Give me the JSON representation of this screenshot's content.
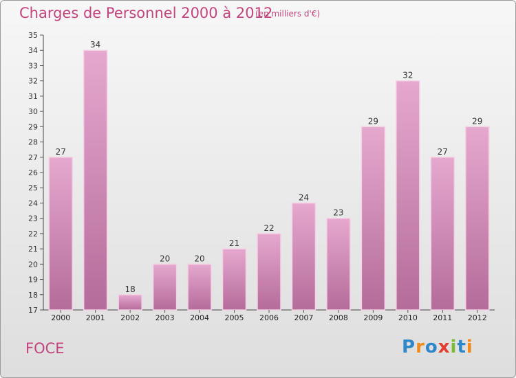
{
  "title": "Charges de Personnel 2000 à 2012",
  "subtitle": "(en milliers d'€)",
  "commune": "FOCE",
  "logo": {
    "text": "Proxiti",
    "letters": [
      "P",
      "r",
      "o",
      "x",
      "i",
      "t",
      "i"
    ],
    "colors": [
      "#2f86c8",
      "#f08a1a",
      "#2f86c8",
      "#e33b2e",
      "#7cbc2e",
      "#2f86c8",
      "#f08a1a"
    ]
  },
  "colors": {
    "bar": "#d98fbd",
    "bar_dark": "#b46c9a",
    "text": "#c2457d",
    "grid": "#c8c8c8"
  },
  "chart_data": {
    "type": "bar",
    "categories": [
      "2000",
      "2001",
      "2002",
      "2003",
      "2004",
      "2005",
      "2006",
      "2007",
      "2008",
      "2009",
      "2010",
      "2011",
      "2012"
    ],
    "values": [
      27,
      34,
      18,
      20,
      20,
      21,
      22,
      24,
      23,
      29,
      32,
      27,
      29
    ],
    "ylim": [
      17,
      35
    ],
    "yticks": [
      17,
      18,
      19,
      20,
      21,
      22,
      23,
      24,
      25,
      26,
      27,
      28,
      29,
      30,
      31,
      32,
      33,
      34,
      35
    ],
    "grid": false
  }
}
